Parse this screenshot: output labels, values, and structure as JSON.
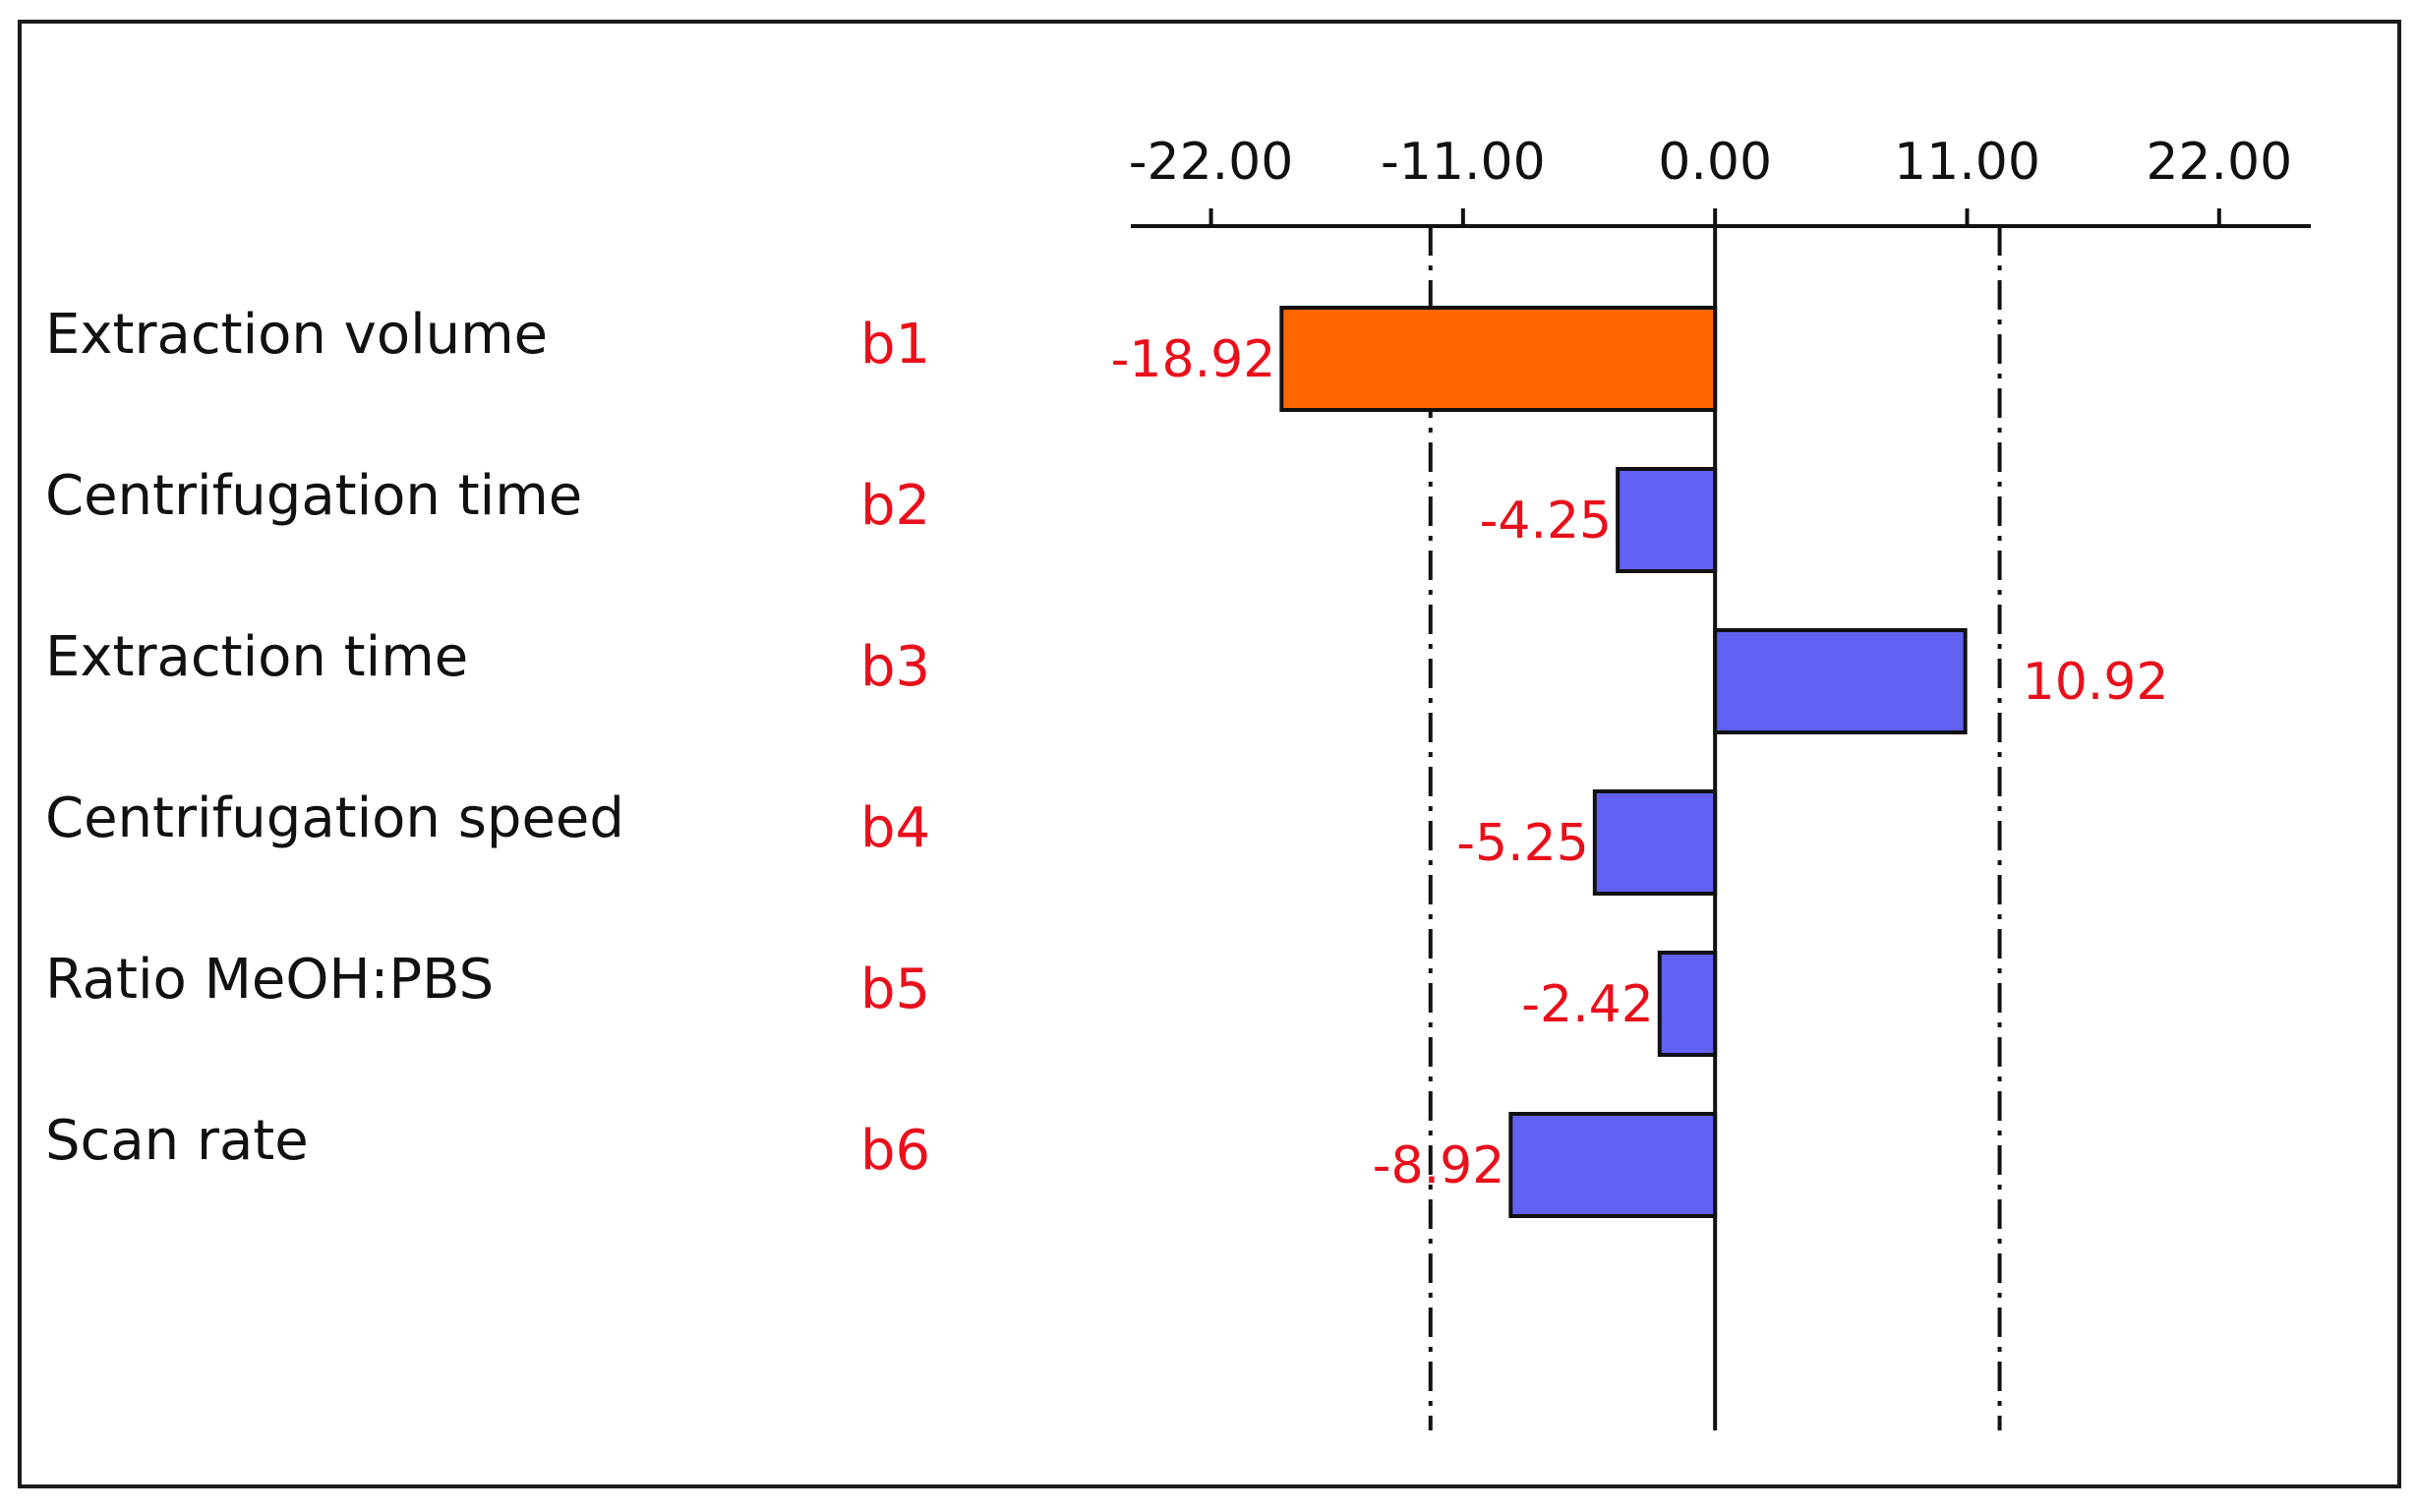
{
  "chart_data": {
    "type": "bar",
    "orientation": "horizontal",
    "x_ticks": [
      -22.0,
      -11.0,
      0.0,
      11.0,
      22.0
    ],
    "x_tick_labels": [
      "-22.00",
      "-11.00",
      "0.00",
      "11.00",
      "22.00"
    ],
    "xlim": [
      -25.5,
      26
    ],
    "significance_limits": [
      -12.42,
      12.42
    ],
    "categories": [
      "Extraction volume",
      "Centrifugation time",
      "Extraction time",
      "Centrifugation speed",
      "Ratio MeOH:PBS",
      "Scan rate"
    ],
    "codes": [
      "b1",
      "b2",
      "b3",
      "b4",
      "b5",
      "b6"
    ],
    "values": [
      -18.92,
      -4.25,
      10.92,
      -5.25,
      -2.42,
      -8.92
    ],
    "value_labels": [
      "-18.92",
      "-4.25",
      "10.92",
      "-5.25",
      "-2.42",
      "-8.92"
    ],
    "colors": {
      "significant_bar": "#ff6600",
      "bar": "#6161f2",
      "labels": "#e8101b",
      "axis": "#111111"
    },
    "highlighted": [
      true,
      false,
      false,
      false,
      false,
      false
    ],
    "grid": false,
    "legend": "none"
  }
}
